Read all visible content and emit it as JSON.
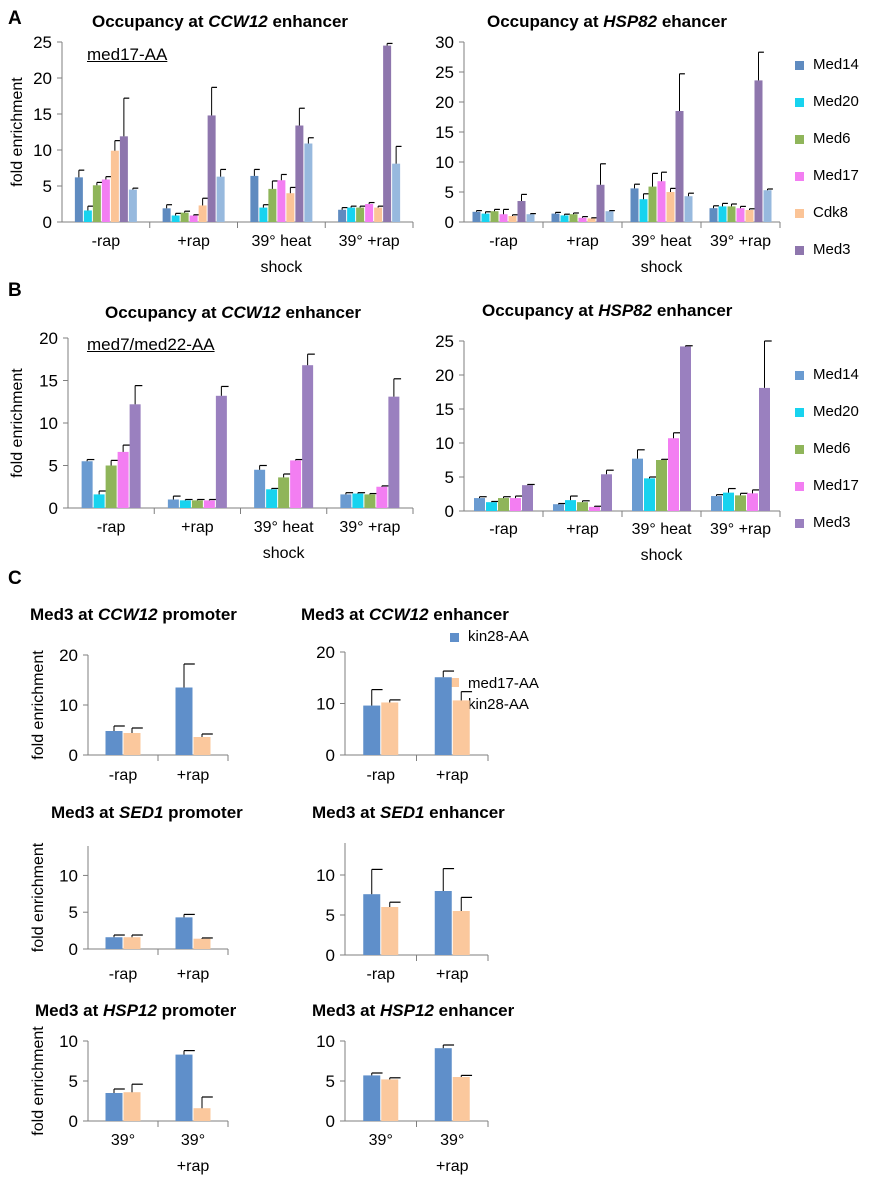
{
  "panel_letters": [
    "A",
    "B",
    "C"
  ],
  "colors": {
    "Med14": "#5f8bc0",
    "Med20": "#17d3ef",
    "Med6": "#8fb55a",
    "Med17": "#f37ef2",
    "Cdk8": "#fbc497",
    "Med3": "#8e76ad",
    "Med3_light": "#97b9de",
    "Med14_B": "#6a9bd1",
    "Med3_B": "#9a80bf",
    "kin28": "#5f8fca",
    "med17kin28": "#fbc89d"
  },
  "legends": {
    "A": [
      "Med14",
      "Med20",
      "Med6",
      "Med17",
      "Cdk8",
      "Med3"
    ],
    "B": [
      "Med14",
      "Med20",
      "Med6",
      "Med17",
      "Med3"
    ],
    "C": [
      "kin28-AA",
      "med17-AA kin28-AA"
    ]
  },
  "strain_labels": {
    "A": "med17-AA",
    "B": "med7/med22-AA"
  },
  "chart_data": [
    {
      "id": "A1",
      "type": "bar",
      "title_pre": "Occupancy at ",
      "title_gene": "CCW12",
      "title_post": " enhancer",
      "ylabel": "fold enrichment",
      "ylim": [
        0,
        25
      ],
      "yticks": [
        0,
        5,
        10,
        15,
        20,
        25
      ],
      "categories": [
        "-rap",
        "+rap",
        "39° heat shock",
        "39° +rap"
      ],
      "series": [
        {
          "name": "Med14",
          "values": [
            6.2,
            1.9,
            6.4,
            1.7
          ],
          "errors": [
            1.0,
            0.5,
            0.9,
            0.3
          ]
        },
        {
          "name": "Med20",
          "values": [
            1.6,
            0.9,
            2.0,
            2.0
          ],
          "errors": [
            0.6,
            0.3,
            0.4,
            0.2
          ]
        },
        {
          "name": "Med6",
          "values": [
            5.1,
            1.3,
            4.6,
            2.0
          ],
          "errors": [
            0.4,
            0.2,
            1.1,
            0.2
          ]
        },
        {
          "name": "Med17",
          "values": [
            5.9,
            0.9,
            5.8,
            2.5
          ],
          "errors": [
            0.4,
            0.1,
            0.8,
            0.2
          ]
        },
        {
          "name": "Cdk8",
          "values": [
            9.9,
            2.3,
            4.0,
            2.0
          ],
          "errors": [
            1.4,
            1.0,
            0.8,
            0.2
          ]
        },
        {
          "name": "Med3",
          "values": [
            11.9,
            14.8,
            13.4,
            24.5
          ],
          "errors": [
            5.3,
            3.9,
            2.4,
            0.3
          ]
        },
        {
          "name": "",
          "values": [
            4.5,
            6.3,
            10.9,
            8.1
          ],
          "errors": [
            0.2,
            1.0,
            0.8,
            2.4
          ]
        }
      ]
    },
    {
      "id": "A2",
      "type": "bar",
      "title_pre": "Occupancy at ",
      "title_gene": "HSP82",
      "title_post": " ehancer",
      "ylabel": "",
      "ylim": [
        0,
        30
      ],
      "yticks": [
        0,
        5,
        10,
        15,
        20,
        25,
        30
      ],
      "categories": [
        "-rap",
        "+rap",
        "39° heat shock",
        "39° +rap"
      ],
      "series": [
        {
          "name": "Med14",
          "values": [
            1.7,
            1.4,
            5.6,
            2.3
          ],
          "errors": [
            0.2,
            0.2,
            0.7,
            0.4
          ]
        },
        {
          "name": "Med20",
          "values": [
            1.4,
            1.1,
            3.8,
            2.6
          ],
          "errors": [
            0.3,
            0.2,
            0.9,
            0.5
          ]
        },
        {
          "name": "Med6",
          "values": [
            1.8,
            1.3,
            5.9,
            2.6
          ],
          "errors": [
            0.3,
            0.2,
            2.2,
            0.4
          ]
        },
        {
          "name": "Med17",
          "values": [
            1.3,
            0.7,
            6.8,
            2.3
          ],
          "errors": [
            0.8,
            0.2,
            1.5,
            0.3
          ]
        },
        {
          "name": "Cdk8",
          "values": [
            1.0,
            0.6,
            5.0,
            2.0
          ],
          "errors": [
            0.2,
            0.1,
            0.6,
            0.2
          ]
        },
        {
          "name": "Med3",
          "values": [
            3.5,
            6.2,
            18.5,
            23.6
          ],
          "errors": [
            1.1,
            3.5,
            6.2,
            4.7
          ]
        },
        {
          "name": "",
          "values": [
            1.3,
            1.8,
            4.3,
            5.3
          ],
          "errors": [
            0.1,
            0.1,
            0.5,
            0.2
          ]
        }
      ]
    },
    {
      "id": "B1",
      "type": "bar",
      "title_pre": "Occupancy at ",
      "title_gene": "CCW12",
      "title_post": " enhancer",
      "ylabel": "fold enrichment",
      "ylim": [
        0,
        20
      ],
      "yticks": [
        0,
        5,
        10,
        15,
        20
      ],
      "categories": [
        "-rap",
        "+rap",
        "39° heat shock",
        "39° +rap"
      ],
      "series": [
        {
          "name": "Med14",
          "values": [
            5.5,
            1.0,
            4.5,
            1.6
          ],
          "errors": [
            0.2,
            0.4,
            0.5,
            0.2
          ]
        },
        {
          "name": "Med20",
          "values": [
            1.6,
            0.9,
            2.2,
            1.7
          ],
          "errors": [
            0.4,
            0.1,
            0.1,
            0.1
          ]
        },
        {
          "name": "Med6",
          "values": [
            5.0,
            0.9,
            3.6,
            1.6
          ],
          "errors": [
            0.6,
            0.1,
            0.4,
            0.1
          ]
        },
        {
          "name": "Med17",
          "values": [
            6.6,
            0.9,
            5.6,
            2.5
          ],
          "errors": [
            0.8,
            0.1,
            0.1,
            0.1
          ]
        },
        {
          "name": "Med3",
          "values": [
            12.2,
            13.2,
            16.8,
            13.1
          ],
          "errors": [
            2.2,
            1.1,
            1.3,
            2.1
          ]
        }
      ]
    },
    {
      "id": "B2",
      "type": "bar",
      "title_pre": "Occupancy at ",
      "title_gene": "HSP82",
      "title_post": " enhancer",
      "ylabel": "",
      "ylim": [
        0,
        25
      ],
      "yticks": [
        0,
        5,
        10,
        15,
        20,
        25
      ],
      "categories": [
        "-rap",
        "+rap",
        "39° heat shock",
        "39° +rap"
      ],
      "series": [
        {
          "name": "Med14",
          "values": [
            1.9,
            1.0,
            7.7,
            2.2
          ],
          "errors": [
            0.2,
            0.1,
            1.3,
            0.2
          ]
        },
        {
          "name": "Med20",
          "values": [
            1.3,
            1.6,
            4.8,
            2.7
          ],
          "errors": [
            0.1,
            0.6,
            0.2,
            0.6
          ]
        },
        {
          "name": "Med6",
          "values": [
            1.9,
            1.3,
            7.5,
            2.3
          ],
          "errors": [
            0.2,
            0.2,
            0.1,
            0.3
          ]
        },
        {
          "name": "Med17",
          "values": [
            1.9,
            0.6,
            10.7,
            2.6
          ],
          "errors": [
            0.3,
            0.1,
            0.8,
            0.5
          ]
        },
        {
          "name": "Med3",
          "values": [
            3.8,
            5.4,
            24.2,
            18.1
          ],
          "errors": [
            0.1,
            0.6,
            0.1,
            6.9
          ]
        }
      ]
    },
    {
      "id": "C1",
      "type": "bar",
      "title_pre": "Med3 at ",
      "title_gene": "CCW12",
      "title_post": " promoter",
      "ylabel": "fold enrichment",
      "ylim": [
        0,
        20
      ],
      "yticks": [
        0,
        10,
        20
      ],
      "categories": [
        "-rap",
        "+rap"
      ],
      "series": [
        {
          "name": "kin28-AA",
          "values": [
            4.8,
            13.5
          ],
          "errors": [
            1.0,
            4.7
          ]
        },
        {
          "name": "med17-AA kin28-AA",
          "values": [
            4.4,
            3.6
          ],
          "errors": [
            1.0,
            0.6
          ]
        }
      ]
    },
    {
      "id": "C2",
      "type": "bar",
      "title_pre": "Med3 at ",
      "title_gene": "CCW12",
      "title_post": " enhancer",
      "ylabel": "",
      "ylim": [
        0,
        20
      ],
      "yticks": [
        0,
        10,
        20
      ],
      "categories": [
        "-rap",
        "+rap"
      ],
      "series": [
        {
          "name": "kin28-AA",
          "values": [
            9.6,
            15.1
          ],
          "errors": [
            3.1,
            1.2
          ]
        },
        {
          "name": "med17-AA kin28-AA",
          "values": [
            10.2,
            10.6
          ],
          "errors": [
            0.5,
            1.7
          ]
        }
      ]
    },
    {
      "id": "C3",
      "type": "bar",
      "title_pre": "Med3 at ",
      "title_gene": "SED1",
      "title_post": " promoter",
      "ylabel": "fold enrichment",
      "ylim": [
        0,
        14
      ],
      "yticks": [
        0,
        5,
        10
      ],
      "categories": [
        "-rap",
        "+rap"
      ],
      "series": [
        {
          "name": "kin28-AA",
          "values": [
            1.6,
            4.3
          ],
          "errors": [
            0.3,
            0.4
          ]
        },
        {
          "name": "med17-AA kin28-AA",
          "values": [
            1.6,
            1.4
          ],
          "errors": [
            0.3,
            0.1
          ]
        }
      ]
    },
    {
      "id": "C4",
      "type": "bar",
      "title_pre": "Med3 at ",
      "title_gene": "SED1",
      "title_post": " enhancer",
      "ylabel": "",
      "ylim": [
        0,
        14
      ],
      "yticks": [
        0,
        5,
        10
      ],
      "categories": [
        "-rap",
        "+rap"
      ],
      "series": [
        {
          "name": "kin28-AA",
          "values": [
            7.6,
            8.0
          ],
          "errors": [
            3.1,
            2.8
          ]
        },
        {
          "name": "med17-AA kin28-AA",
          "values": [
            6.0,
            5.5
          ],
          "errors": [
            0.6,
            1.7
          ]
        }
      ]
    },
    {
      "id": "C5",
      "type": "bar",
      "title_pre": "Med3 at ",
      "title_gene": "HSP12",
      "title_post": " promoter",
      "ylabel": "fold enrichment",
      "ylim": [
        0,
        10
      ],
      "yticks": [
        0,
        5,
        10
      ],
      "categories": [
        "39°",
        "39° +rap"
      ],
      "series": [
        {
          "name": "kin28-AA",
          "values": [
            3.5,
            8.3
          ],
          "errors": [
            0.5,
            0.5
          ]
        },
        {
          "name": "med17-AA kin28-AA",
          "values": [
            3.6,
            1.6
          ],
          "errors": [
            1.0,
            1.4
          ]
        }
      ]
    },
    {
      "id": "C6",
      "type": "bar",
      "title_pre": "Med3 at ",
      "title_gene": "HSP12",
      "title_post": " enhancer",
      "ylabel": "",
      "ylim": [
        0,
        10
      ],
      "yticks": [
        0,
        5,
        10
      ],
      "categories": [
        "39°",
        "39° +rap"
      ],
      "series": [
        {
          "name": "kin28-AA",
          "values": [
            5.7,
            9.1
          ],
          "errors": [
            0.3,
            0.4
          ]
        },
        {
          "name": "med17-AA kin28-AA",
          "values": [
            5.2,
            5.5
          ],
          "errors": [
            0.2,
            0.2
          ]
        }
      ]
    }
  ]
}
